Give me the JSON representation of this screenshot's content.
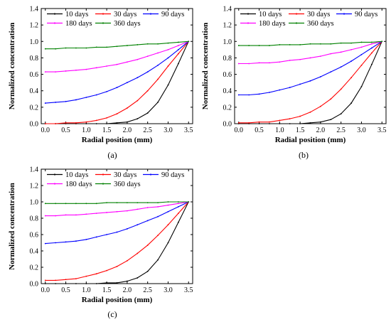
{
  "chart_data": [
    {
      "type": "line",
      "caption": "(a)",
      "xlabel": "Radial position (mm)",
      "ylabel": "Normalized concentration",
      "xlim": [
        -0.1,
        3.6
      ],
      "ylim": [
        0.0,
        1.4
      ],
      "xticks": [
        "0.0",
        "0.5",
        "1.0",
        "1.5",
        "2.0",
        "2.5",
        "3.0",
        "3.5"
      ],
      "yticks": [
        "0.0",
        "0.2",
        "0.4",
        "0.6",
        "0.8",
        "1.0",
        "1.2",
        "1.4"
      ],
      "legend_position": "top",
      "x": [
        0.0,
        0.25,
        0.5,
        0.75,
        1.0,
        1.25,
        1.5,
        1.75,
        2.0,
        2.25,
        2.5,
        2.75,
        3.0,
        3.25,
        3.5
      ],
      "series": [
        {
          "name": "10 days",
          "color": "#000000",
          "values": [
            0.0,
            0.0,
            0.0,
            0.0,
            0.0,
            0.0,
            0.0,
            0.01,
            0.02,
            0.06,
            0.13,
            0.26,
            0.47,
            0.73,
            1.0
          ]
        },
        {
          "name": "30 days",
          "color": "#ff0000",
          "values": [
            0.0,
            0.0,
            0.01,
            0.01,
            0.02,
            0.04,
            0.07,
            0.12,
            0.19,
            0.28,
            0.4,
            0.54,
            0.7,
            0.85,
            1.0
          ]
        },
        {
          "name": "90 days",
          "color": "#0000ff",
          "values": [
            0.25,
            0.26,
            0.27,
            0.29,
            0.32,
            0.35,
            0.39,
            0.44,
            0.5,
            0.56,
            0.63,
            0.71,
            0.8,
            0.9,
            1.0
          ]
        },
        {
          "name": "180 days",
          "color": "#ff00ff",
          "values": [
            0.63,
            0.63,
            0.64,
            0.65,
            0.66,
            0.68,
            0.7,
            0.72,
            0.75,
            0.78,
            0.82,
            0.86,
            0.9,
            0.95,
            1.0
          ]
        },
        {
          "name": "360 days",
          "color": "#008000",
          "values": [
            0.91,
            0.91,
            0.92,
            0.92,
            0.92,
            0.93,
            0.93,
            0.94,
            0.95,
            0.96,
            0.97,
            0.97,
            0.98,
            0.99,
            1.0
          ]
        }
      ]
    },
    {
      "type": "line",
      "caption": "(b)",
      "xlabel": "Radial position (mm)",
      "ylabel": "Normalized concentration",
      "xlim": [
        -0.1,
        3.6
      ],
      "ylim": [
        0.0,
        1.4
      ],
      "xticks": [
        "0.0",
        "0.5",
        "1.0",
        "1.5",
        "2.0",
        "2.5",
        "3.0",
        "3.5"
      ],
      "yticks": [
        "0.0",
        "0.2",
        "0.4",
        "0.6",
        "0.8",
        "1.0",
        "1.2",
        "1.4"
      ],
      "legend_position": "top",
      "x": [
        0.0,
        0.25,
        0.5,
        0.75,
        1.0,
        1.25,
        1.5,
        1.75,
        2.0,
        2.25,
        2.5,
        2.75,
        3.0,
        3.25,
        3.5
      ],
      "series": [
        {
          "name": "10 days",
          "color": "#000000",
          "values": [
            0.0,
            0.0,
            0.0,
            0.0,
            0.0,
            0.0,
            0.0,
            0.01,
            0.02,
            0.05,
            0.12,
            0.25,
            0.45,
            0.72,
            1.0
          ]
        },
        {
          "name": "30 days",
          "color": "#ff0000",
          "values": [
            0.01,
            0.01,
            0.02,
            0.02,
            0.04,
            0.06,
            0.09,
            0.14,
            0.21,
            0.3,
            0.42,
            0.56,
            0.71,
            0.86,
            1.0
          ]
        },
        {
          "name": "90 days",
          "color": "#0000ff",
          "values": [
            0.35,
            0.35,
            0.36,
            0.38,
            0.41,
            0.44,
            0.48,
            0.52,
            0.57,
            0.63,
            0.69,
            0.76,
            0.84,
            0.92,
            1.0
          ]
        },
        {
          "name": "180 days",
          "color": "#ff00ff",
          "values": [
            0.73,
            0.73,
            0.74,
            0.74,
            0.75,
            0.77,
            0.78,
            0.8,
            0.82,
            0.85,
            0.87,
            0.9,
            0.93,
            0.97,
            1.0
          ]
        },
        {
          "name": "360 days",
          "color": "#008000",
          "values": [
            0.95,
            0.95,
            0.95,
            0.95,
            0.96,
            0.96,
            0.96,
            0.97,
            0.97,
            0.97,
            0.98,
            0.98,
            0.99,
            0.99,
            1.0
          ]
        }
      ]
    },
    {
      "type": "line",
      "caption": "(c)",
      "xlabel": "Radial position (mm)",
      "ylabel": "Normalized concentration",
      "xlim": [
        -0.1,
        3.6
      ],
      "ylim": [
        0.0,
        1.4
      ],
      "xticks": [
        "0.0",
        "0.5",
        "1.0",
        "1.5",
        "2.0",
        "2.5",
        "3.0",
        "3.5"
      ],
      "yticks": [
        "0.0",
        "0.2",
        "0.4",
        "0.6",
        "0.8",
        "1.0",
        "1.2",
        "1.4"
      ],
      "legend_position": "top",
      "x": [
        0.0,
        0.25,
        0.5,
        0.75,
        1.0,
        1.25,
        1.5,
        1.75,
        2.0,
        2.25,
        2.5,
        2.75,
        3.0,
        3.25,
        3.5
      ],
      "series": [
        {
          "name": "10 days",
          "color": "#000000",
          "values": [
            0.0,
            0.0,
            0.0,
            0.0,
            0.0,
            0.0,
            0.01,
            0.01,
            0.03,
            0.07,
            0.15,
            0.29,
            0.5,
            0.75,
            1.0
          ]
        },
        {
          "name": "30 days",
          "color": "#ff0000",
          "values": [
            0.04,
            0.04,
            0.05,
            0.06,
            0.09,
            0.12,
            0.16,
            0.21,
            0.28,
            0.37,
            0.47,
            0.59,
            0.72,
            0.86,
            1.0
          ]
        },
        {
          "name": "90 days",
          "color": "#0000ff",
          "values": [
            0.49,
            0.5,
            0.51,
            0.52,
            0.54,
            0.57,
            0.6,
            0.63,
            0.67,
            0.72,
            0.77,
            0.82,
            0.88,
            0.94,
            1.0
          ]
        },
        {
          "name": "180 days",
          "color": "#ff00ff",
          "values": [
            0.83,
            0.83,
            0.84,
            0.84,
            0.85,
            0.86,
            0.87,
            0.88,
            0.89,
            0.91,
            0.93,
            0.94,
            0.96,
            0.98,
            1.0
          ]
        },
        {
          "name": "360 days",
          "color": "#008000",
          "values": [
            0.98,
            0.98,
            0.98,
            0.98,
            0.98,
            0.98,
            0.99,
            0.99,
            0.99,
            0.99,
            0.99,
            0.99,
            1.0,
            1.0,
            1.0
          ]
        }
      ]
    }
  ]
}
